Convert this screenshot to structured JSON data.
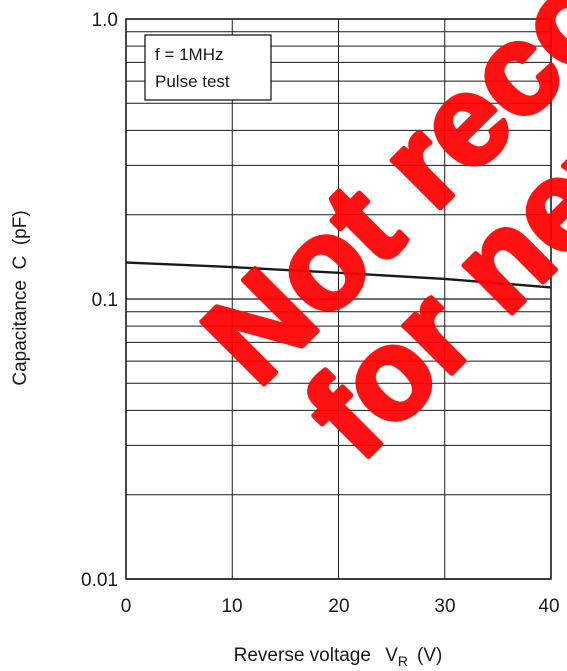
{
  "chart_data": {
    "type": "line",
    "xlabel": "Reverse voltage",
    "xlabel_symbol": "V",
    "xlabel_subscript": "R",
    "xlabel_unit": "(V)",
    "ylabel": "Capacitance  C  (pF)",
    "xlim": [
      0,
      40
    ],
    "ylim": [
      0.01,
      1.0
    ],
    "yscale": "log",
    "grid": true,
    "x_ticks": [
      0,
      10,
      20,
      30,
      40
    ],
    "x_tick_labels": [
      "0",
      "10",
      "20",
      "30",
      "40"
    ],
    "y_ticks": [
      0.01,
      0.1,
      1.0
    ],
    "y_tick_labels": [
      "0.01",
      "0.1",
      "1.0"
    ],
    "annotation_lines": [
      "f = 1MHz",
      "Pulse test"
    ],
    "series": [
      {
        "x": [
          0,
          10,
          20,
          30,
          40
        ],
        "values": [
          0.135,
          0.13,
          0.124,
          0.118,
          0.11
        ]
      }
    ],
    "line_color": "#1a1a1a",
    "grid_color": "#1a1a1a"
  },
  "watermark": {
    "line1": "Not recommended",
    "line2": "for new design",
    "color": "#ff0000"
  }
}
